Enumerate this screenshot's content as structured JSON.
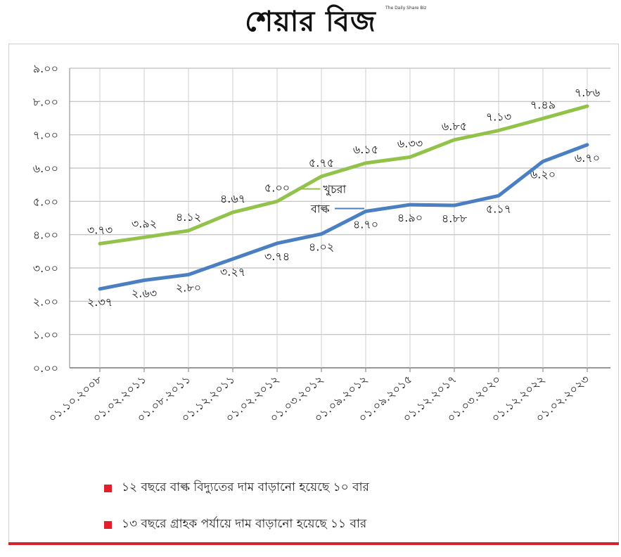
{
  "header": {
    "logo_text": "শেয়ার বিজ",
    "tagline": "The Daily Share Biz"
  },
  "chart_data": {
    "type": "line",
    "categories": [
      "০১.১০.২০০৮",
      "০১.০২.২০১১",
      "০১.০৮.২০১১",
      "০১.১২.২০১১",
      "০১.০২.২০১২",
      "০১.০৩.২০১২",
      "০১.০৯.২০১২",
      "০১.০৯.২০১৫",
      "০১.১২.২০১৭",
      "০১.০৩.২০২০",
      "০১.১২.২০২২",
      "০১.০২.২০২৩"
    ],
    "ylim": [
      0,
      9
    ],
    "yticks": [
      "০.০০",
      "১.০০",
      "২.০০",
      "৩.০০",
      "৪.০০",
      "৫.০০",
      "৬.০০",
      "৭.০০",
      "৮.০০",
      "৯.০০"
    ],
    "grid": true,
    "series": [
      {
        "name": "খুচরা",
        "color": "#93c24a",
        "values": [
          3.73,
          3.92,
          4.12,
          4.67,
          5.0,
          5.75,
          6.15,
          6.33,
          6.85,
          7.13,
          7.49,
          7.86
        ],
        "labels": [
          "৩.৭৩",
          "৩.৯২",
          "৪.১২",
          "৪.৬৭",
          "৫.০০",
          "৫.৭৫",
          "৬.১৫",
          "৬.৩৩",
          "৬.৮৫",
          "৭.১৩",
          "৭.৪৯",
          "৭.৮৬"
        ]
      },
      {
        "name": "বাল্ক",
        "color": "#4a7fc1",
        "values": [
          2.37,
          2.63,
          2.8,
          3.27,
          3.74,
          4.02,
          4.7,
          4.9,
          4.88,
          5.17,
          6.2,
          6.7
        ],
        "labels": [
          "২.৩৭",
          "২.৬৩",
          "২.৮০",
          "৩.২৭",
          "৩.৭৪",
          "৪.০২",
          "৪.৭০",
          "৪.৯০",
          "৪.৮৮",
          "৫.১৭",
          "৬.২০",
          "৬.৭০"
        ]
      }
    ]
  },
  "notes": [
    "১২ বছরে বাল্ক বিদ্যুতের দাম বাড়ানো হয়েছে ১০ বার",
    "১৩ বছরে গ্রাহক পর্যায়ে দাম বাড়ানো হয়েছে ১১ বার"
  ],
  "colors": {
    "accent": "#d5222b",
    "legend_square": "#e0202c"
  }
}
